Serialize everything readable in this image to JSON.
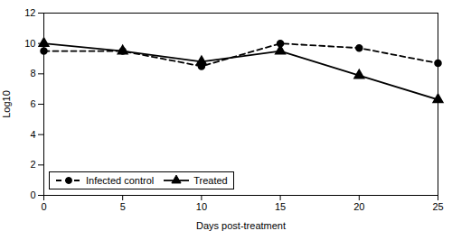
{
  "chart_data": {
    "type": "line",
    "x": [
      0,
      5,
      10,
      15,
      20,
      25
    ],
    "series": [
      {
        "name": "Infected control",
        "color": "#000000",
        "values": [
          9.5,
          9.5,
          8.5,
          10.0,
          9.7,
          8.7
        ],
        "line_style": "dashed",
        "marker": "circle"
      },
      {
        "name": "Treated",
        "color": "#000000",
        "values": [
          10.0,
          9.5,
          8.8,
          9.5,
          7.9,
          6.3
        ],
        "line_style": "solid",
        "marker": "triangle"
      }
    ],
    "xlabel": "Days post-treatment",
    "ylabel": "Log10",
    "xlim": [
      0,
      25
    ],
    "ylim": [
      0,
      12
    ],
    "xticks": [
      0,
      5,
      10,
      15,
      20,
      25
    ],
    "yticks": [
      0,
      2,
      4,
      6,
      8,
      10,
      12
    ],
    "grid": false,
    "legend": "lower left"
  }
}
